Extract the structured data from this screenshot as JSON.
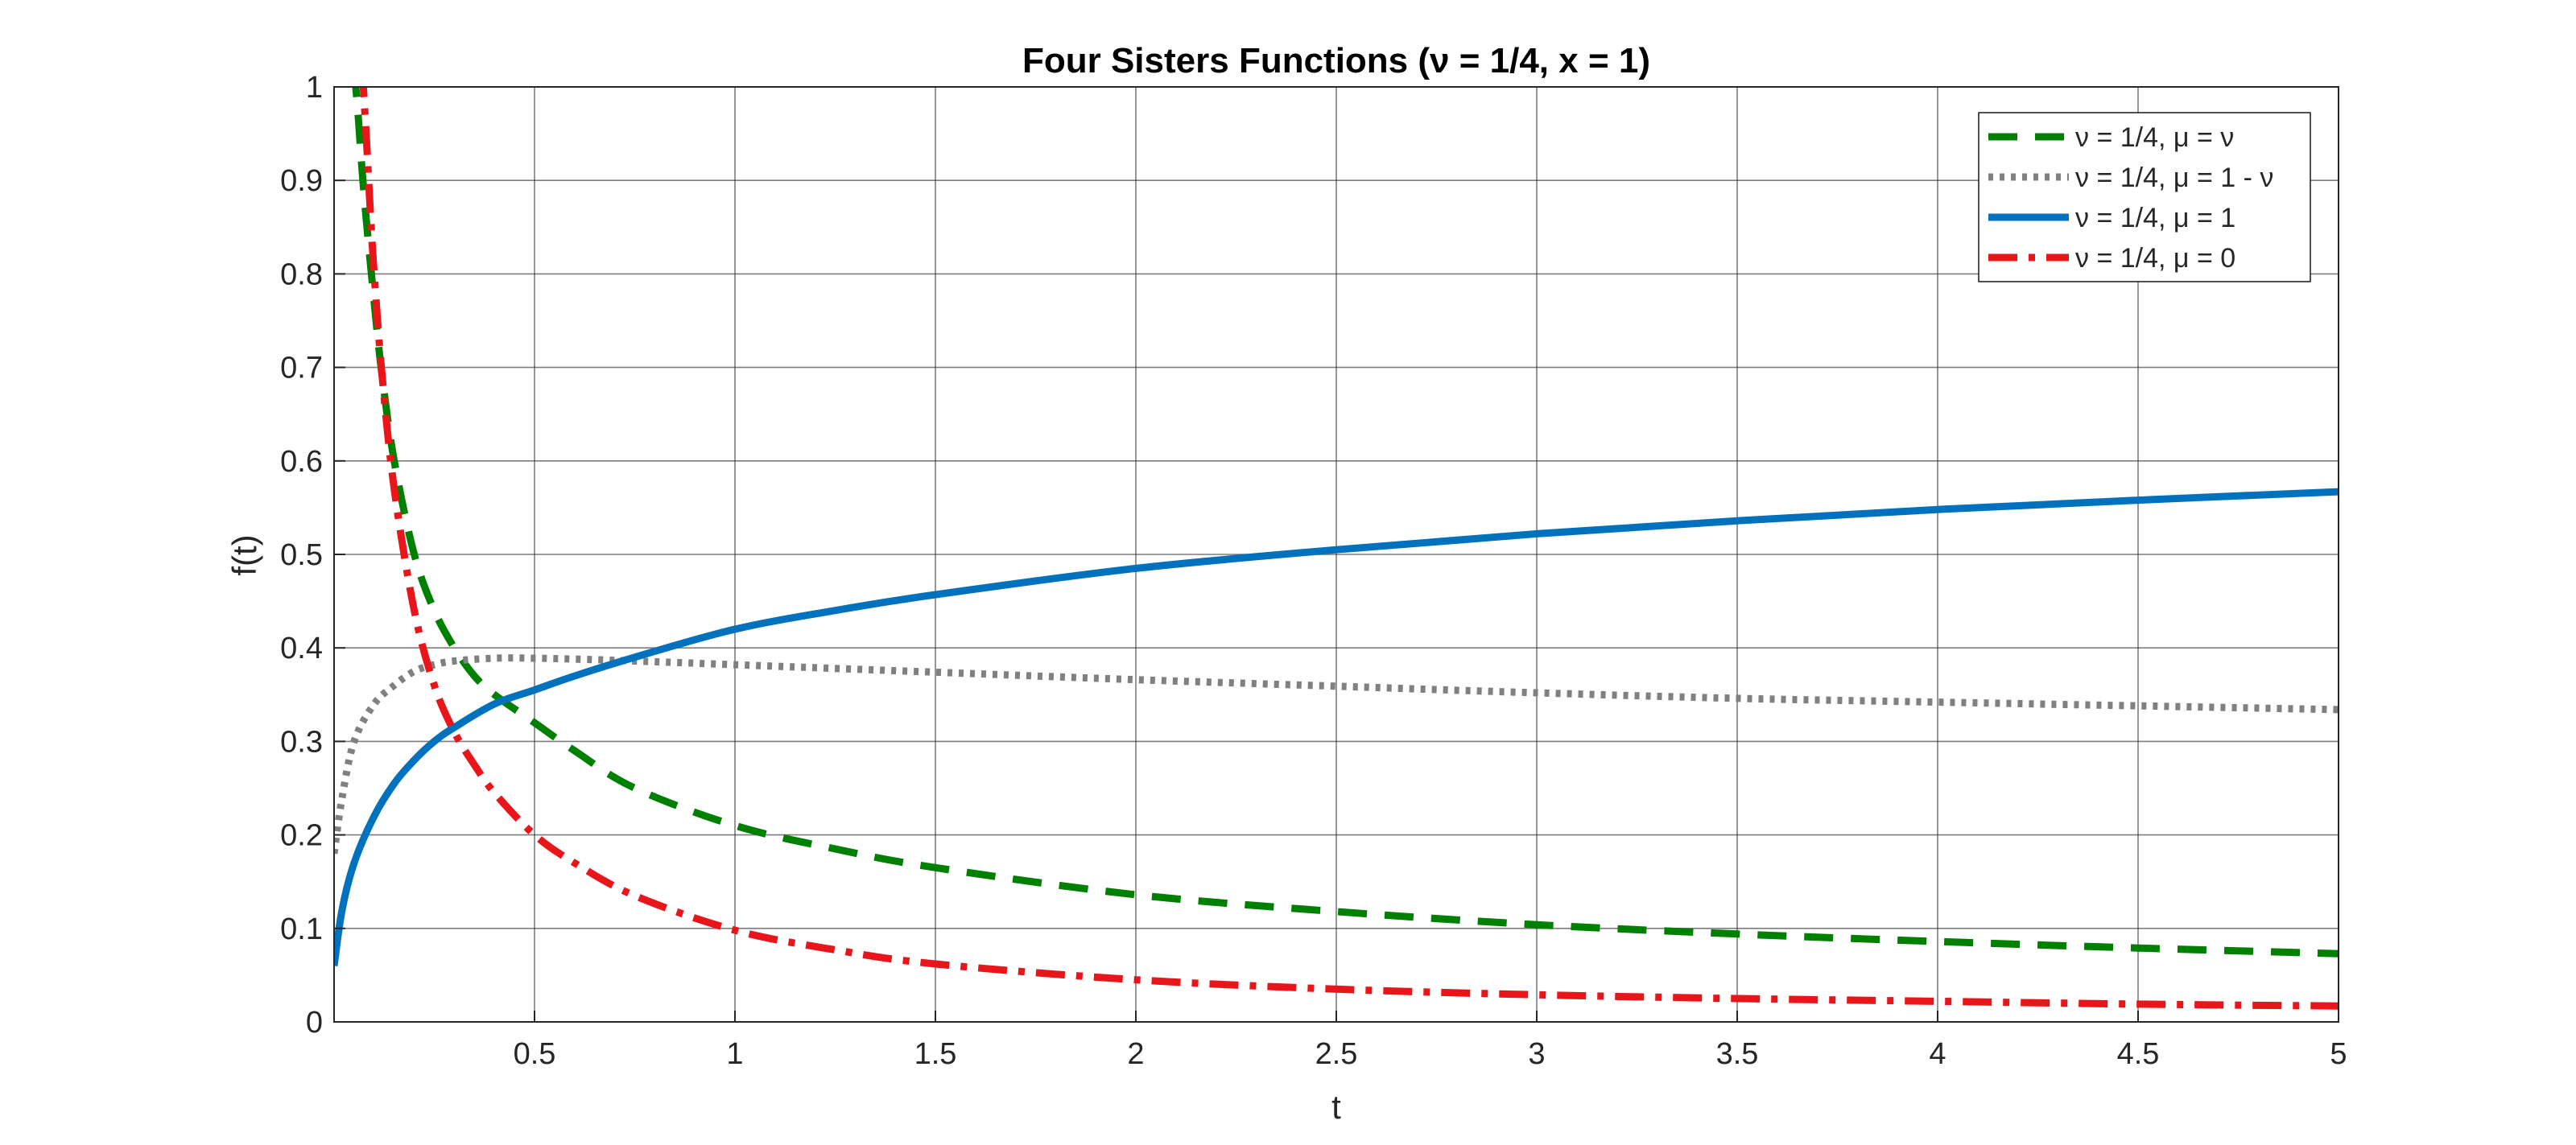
{
  "chart_data": {
    "type": "line",
    "title": "Four Sisters Functions (ν = 1/4, x = 1)",
    "xlabel": "t",
    "ylabel": "f(t)",
    "xlim": [
      0,
      5
    ],
    "ylim": [
      0,
      1
    ],
    "xticks": [
      0.5,
      1,
      1.5,
      2,
      2.5,
      3,
      3.5,
      4,
      4.5,
      5
    ],
    "xtick_labels": [
      "0.5",
      "1",
      "1.5",
      "2",
      "2.5",
      "3",
      "3.5",
      "4",
      "4.5",
      "5"
    ],
    "yticks": [
      0,
      0.1,
      0.2,
      0.3,
      0.4,
      0.5,
      0.6,
      0.7,
      0.8,
      0.9,
      1
    ],
    "ytick_labels": [
      "0",
      "0.1",
      "0.2",
      "0.3",
      "0.4",
      "0.5",
      "0.6",
      "0.7",
      "0.8",
      "0.9",
      "1"
    ],
    "grid": true,
    "legend_position": "top-right",
    "series": [
      {
        "name": "ν = 1/4, μ = ν",
        "color": "#008000",
        "style": "dashed",
        "x": [
          0.05,
          0.06,
          0.07,
          0.08,
          0.1,
          0.12,
          0.15,
          0.2,
          0.25,
          0.3,
          0.35,
          0.4,
          0.5,
          0.6,
          0.75,
          1,
          1.25,
          1.5,
          2,
          2.5,
          3,
          3.5,
          4,
          4.5,
          5
        ],
        "y": [
          1.02,
          0.97,
          0.91,
          0.86,
          0.77,
          0.69,
          0.6,
          0.5,
          0.44,
          0.4,
          0.37,
          0.35,
          0.32,
          0.29,
          0.25,
          0.21,
          0.185,
          0.165,
          0.136,
          0.118,
          0.104,
          0.094,
          0.086,
          0.079,
          0.073
        ]
      },
      {
        "name": "ν = 1/4, μ = 1 - ν",
        "color": "#808080",
        "style": "dotted",
        "x": [
          0.0,
          0.02,
          0.05,
          0.1,
          0.15,
          0.2,
          0.25,
          0.3,
          0.4,
          0.5,
          0.6,
          0.75,
          1,
          1.5,
          2,
          2.5,
          3,
          3.5,
          4,
          4.5,
          5
        ],
        "y": [
          0.18,
          0.24,
          0.3,
          0.34,
          0.36,
          0.375,
          0.382,
          0.386,
          0.389,
          0.389,
          0.388,
          0.386,
          0.382,
          0.374,
          0.366,
          0.359,
          0.352,
          0.346,
          0.342,
          0.338,
          0.334
        ]
      },
      {
        "name": "ν = 1/4, μ = 1",
        "color": "#0072BD",
        "style": "solid",
        "x": [
          0.0,
          0.02,
          0.05,
          0.1,
          0.15,
          0.2,
          0.25,
          0.3,
          0.4,
          0.5,
          0.6,
          0.75,
          1,
          1.25,
          1.5,
          2,
          2.5,
          3,
          3.5,
          4,
          4.5,
          5
        ],
        "y": [
          0.06,
          0.12,
          0.17,
          0.22,
          0.255,
          0.28,
          0.3,
          0.315,
          0.34,
          0.355,
          0.37,
          0.39,
          0.42,
          0.44,
          0.457,
          0.485,
          0.505,
          0.522,
          0.536,
          0.548,
          0.558,
          0.567
        ]
      },
      {
        "name": "ν = 1/4, μ = 0",
        "color": "#E8161B",
        "style": "dashdot",
        "x": [
          0.07,
          0.08,
          0.09,
          0.1,
          0.12,
          0.15,
          0.2,
          0.25,
          0.3,
          0.35,
          0.4,
          0.5,
          0.6,
          0.75,
          1,
          1.25,
          1.5,
          2,
          2.5,
          3,
          3.5,
          4,
          4.5,
          5
        ],
        "y": [
          1.02,
          0.95,
          0.87,
          0.8,
          0.69,
          0.57,
          0.44,
          0.36,
          0.31,
          0.275,
          0.245,
          0.2,
          0.17,
          0.135,
          0.098,
          0.077,
          0.062,
          0.045,
          0.035,
          0.029,
          0.025,
          0.022,
          0.019,
          0.017
        ]
      }
    ]
  }
}
